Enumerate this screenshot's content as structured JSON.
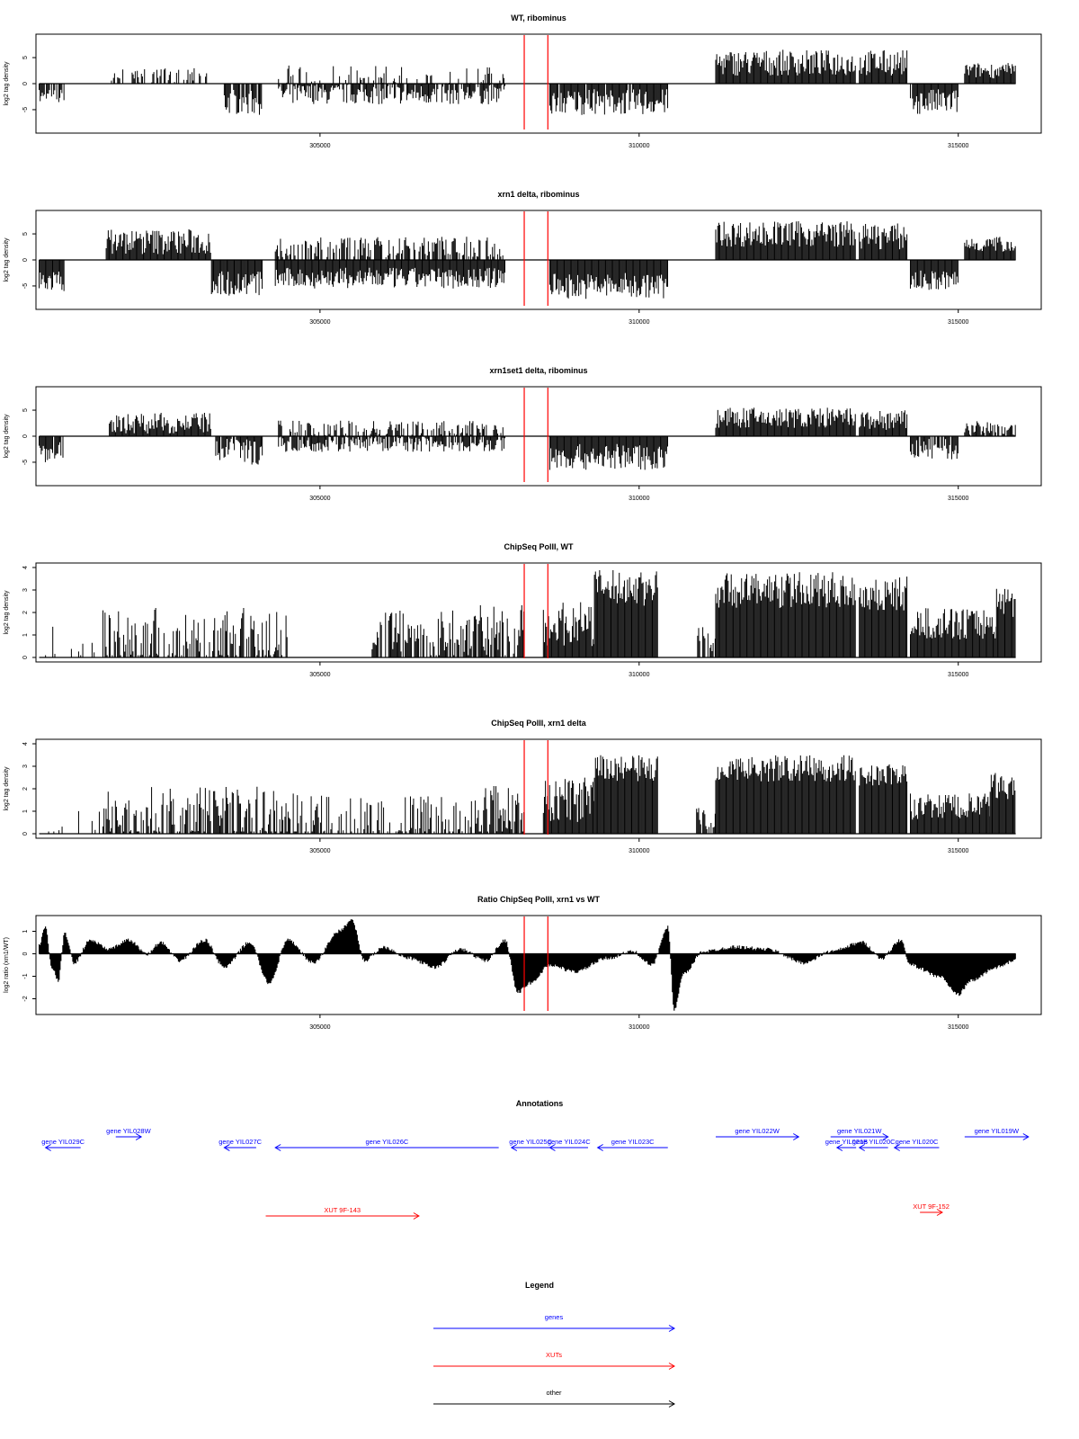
{
  "axis": {
    "x_domain": [
      300550,
      316300
    ],
    "x_ticks": [
      305000,
      310000,
      315000
    ],
    "x_tick_labels": [
      "305000",
      "310000",
      "315000"
    ]
  },
  "highlight": {
    "color": "#ff0000",
    "positions": [
      308200,
      308570
    ]
  },
  "chart_data": [
    {
      "type": "bar",
      "title": "WT, ribominus",
      "ylabel": "log2 tag density",
      "ylim": [
        -9.5,
        9.5
      ],
      "y_ticks": [
        -5,
        0,
        5
      ],
      "y_tick_labels": [
        "-5",
        "0",
        "5"
      ],
      "x_range": [
        300600,
        315900
      ],
      "segments": [
        {
          "x": [
            300600,
            301000
          ],
          "value": -2.5,
          "amp": 1.5,
          "density": 0.8
        },
        {
          "x": [
            301700,
            303300
          ],
          "value": 1.5,
          "amp": 1.5,
          "density": 0.45
        },
        {
          "x": [
            303500,
            304100
          ],
          "value": -3.5,
          "amp": 2.5,
          "density": 0.9
        },
        {
          "x": [
            304350,
            307900
          ],
          "value": -2.0,
          "amp": 2.0,
          "density": 0.85
        },
        {
          "x": [
            304350,
            307900
          ],
          "value": 1.5,
          "amp": 2.0,
          "density": 0.35
        },
        {
          "x": [
            308600,
            310450
          ],
          "value": -3.5,
          "amp": 2.5,
          "density": 0.95
        },
        {
          "x": [
            311200,
            313400
          ],
          "value": 4.0,
          "amp": 2.5,
          "density": 1.0
        },
        {
          "x": [
            313450,
            314200
          ],
          "value": 4.0,
          "amp": 2.5,
          "density": 1.0
        },
        {
          "x": [
            314250,
            315000
          ],
          "value": -3.5,
          "amp": 2.5,
          "density": 0.95
        },
        {
          "x": [
            315100,
            315900
          ],
          "value": 2.5,
          "amp": 1.5,
          "density": 1.0
        }
      ]
    },
    {
      "type": "bar",
      "title": "xrn1 delta, ribominus",
      "ylabel": "log2 tag density",
      "ylim": [
        -9.5,
        9.5
      ],
      "y_ticks": [
        -5,
        0,
        5
      ],
      "y_tick_labels": [
        "-5",
        "0",
        "5"
      ],
      "x_range": [
        300600,
        315900
      ],
      "segments": [
        {
          "x": [
            300600,
            301000
          ],
          "value": -4.0,
          "amp": 2.0,
          "density": 1.0
        },
        {
          "x": [
            301650,
            303300
          ],
          "value": 3.5,
          "amp": 2.5,
          "density": 1.0
        },
        {
          "x": [
            303300,
            304100
          ],
          "value": -4.5,
          "amp": 2.5,
          "density": 1.0
        },
        {
          "x": [
            304300,
            307900
          ],
          "value": -3.5,
          "amp": 2.0,
          "density": 1.0
        },
        {
          "x": [
            304300,
            307900
          ],
          "value": 2.5,
          "amp": 2.0,
          "density": 0.6
        },
        {
          "x": [
            308600,
            310450
          ],
          "value": -5.0,
          "amp": 2.5,
          "density": 1.0
        },
        {
          "x": [
            311200,
            313400
          ],
          "value": 5.0,
          "amp": 2.5,
          "density": 1.0
        },
        {
          "x": [
            313450,
            314200
          ],
          "value": 4.5,
          "amp": 2.5,
          "density": 1.0
        },
        {
          "x": [
            314250,
            315000
          ],
          "value": -4.0,
          "amp": 2.0,
          "density": 1.0
        },
        {
          "x": [
            315100,
            315900
          ],
          "value": 3.0,
          "amp": 1.5,
          "density": 1.0
        }
      ]
    },
    {
      "type": "bar",
      "title": "xrn1set1 delta, ribominus",
      "ylabel": "log2 tag density",
      "ylim": [
        -9.5,
        9.5
      ],
      "y_ticks": [
        -5,
        0,
        5
      ],
      "y_tick_labels": [
        "-5",
        "0",
        "5"
      ],
      "x_range": [
        300600,
        315900
      ],
      "segments": [
        {
          "x": [
            300600,
            301000
          ],
          "value": -3.0,
          "amp": 2.0,
          "density": 0.9
        },
        {
          "x": [
            301700,
            303300
          ],
          "value": 2.5,
          "amp": 2.0,
          "density": 1.0
        },
        {
          "x": [
            303350,
            304100
          ],
          "value": -3.0,
          "amp": 2.5,
          "density": 0.9
        },
        {
          "x": [
            304350,
            307900
          ],
          "value": -1.5,
          "amp": 1.5,
          "density": 0.85
        },
        {
          "x": [
            304350,
            307900
          ],
          "value": 1.5,
          "amp": 1.5,
          "density": 0.6
        },
        {
          "x": [
            308600,
            310450
          ],
          "value": -4.0,
          "amp": 2.5,
          "density": 1.0
        },
        {
          "x": [
            311200,
            313400
          ],
          "value": 3.5,
          "amp": 2.0,
          "density": 1.0
        },
        {
          "x": [
            313450,
            314200
          ],
          "value": 3.0,
          "amp": 2.0,
          "density": 1.0
        },
        {
          "x": [
            314250,
            315000
          ],
          "value": -2.5,
          "amp": 2.0,
          "density": 0.9
        },
        {
          "x": [
            315100,
            315900
          ],
          "value": 1.5,
          "amp": 1.5,
          "density": 0.9
        }
      ]
    },
    {
      "type": "bar",
      "title": "ChipSeq PolII, WT",
      "ylabel": "log2 tag density",
      "ylim": [
        -0.2,
        4.2
      ],
      "y_ticks": [
        0,
        1,
        2,
        3,
        4
      ],
      "y_tick_labels": [
        "0",
        "1",
        "2",
        "3",
        "4"
      ],
      "x_range": [
        300600,
        315900
      ],
      "segments": [
        {
          "x": [
            300700,
            301600
          ],
          "value": 0.4,
          "amp": 1.3,
          "density": 0.12
        },
        {
          "x": [
            301600,
            304500
          ],
          "value": 1.0,
          "amp": 1.2,
          "density": 0.7
        },
        {
          "x": [
            305800,
            307400
          ],
          "value": 1.0,
          "amp": 1.1,
          "density": 0.7
        },
        {
          "x": [
            307400,
            308200
          ],
          "value": 1.1,
          "amp": 1.3,
          "density": 0.8
        },
        {
          "x": [
            308500,
            309300
          ],
          "value": 1.5,
          "amp": 1.0,
          "density": 1.0
        },
        {
          "x": [
            309300,
            310300
          ],
          "value": 3.1,
          "amp": 0.8,
          "density": 1.0
        },
        {
          "x": [
            310900,
            311200
          ],
          "value": 0.8,
          "amp": 0.6,
          "density": 0.7
        },
        {
          "x": [
            311200,
            313400
          ],
          "value": 3.0,
          "amp": 0.8,
          "density": 1.0
        },
        {
          "x": [
            313450,
            314200
          ],
          "value": 2.8,
          "amp": 0.8,
          "density": 1.0
        },
        {
          "x": [
            314250,
            315600
          ],
          "value": 1.5,
          "amp": 0.7,
          "density": 1.0
        },
        {
          "x": [
            315600,
            315900
          ],
          "value": 2.5,
          "amp": 0.7,
          "density": 1.0
        }
      ]
    },
    {
      "type": "bar",
      "title": "ChipSeq PolII, xrn1 delta",
      "ylabel": "log2 tag density",
      "ylim": [
        -0.2,
        4.2
      ],
      "y_ticks": [
        0,
        1,
        2,
        3,
        4
      ],
      "y_tick_labels": [
        "0",
        "1",
        "2",
        "3",
        "4"
      ],
      "x_range": [
        300600,
        315900
      ],
      "segments": [
        {
          "x": [
            300700,
            301600
          ],
          "value": 0.3,
          "amp": 1.0,
          "density": 0.1
        },
        {
          "x": [
            301600,
            304700
          ],
          "value": 0.8,
          "amp": 1.3,
          "density": 0.7
        },
        {
          "x": [
            304700,
            307400
          ],
          "value": 0.5,
          "amp": 1.2,
          "density": 0.6
        },
        {
          "x": [
            307400,
            308200
          ],
          "value": 1.0,
          "amp": 1.2,
          "density": 0.8
        },
        {
          "x": [
            308500,
            309300
          ],
          "value": 1.5,
          "amp": 1.0,
          "density": 1.0
        },
        {
          "x": [
            309300,
            310300
          ],
          "value": 2.9,
          "amp": 0.6,
          "density": 1.0
        },
        {
          "x": [
            310900,
            311200
          ],
          "value": 0.7,
          "amp": 0.5,
          "density": 0.7
        },
        {
          "x": [
            311200,
            313400
          ],
          "value": 2.9,
          "amp": 0.6,
          "density": 1.0
        },
        {
          "x": [
            313450,
            314200
          ],
          "value": 2.6,
          "amp": 0.5,
          "density": 1.0
        },
        {
          "x": [
            314250,
            315500
          ],
          "value": 1.2,
          "amp": 0.6,
          "density": 1.0
        },
        {
          "x": [
            315500,
            315900
          ],
          "value": 2.1,
          "amp": 0.6,
          "density": 1.0
        }
      ]
    },
    {
      "type": "area",
      "title": "Ratio ChipSeq PolII, xrn1 vs WT",
      "ylabel": "log2 ratio (xrn1/WT)",
      "ylim": [
        -2.7,
        1.7
      ],
      "y_ticks": [
        -2,
        -1,
        0,
        1
      ],
      "y_tick_labels": [
        "-2",
        "-1",
        "0",
        "1"
      ],
      "x_range": [
        300600,
        315900
      ],
      "anchors": [
        [
          300600,
          0.4
        ],
        [
          300700,
          1.2
        ],
        [
          300800,
          -0.6
        ],
        [
          300900,
          -1.2
        ],
        [
          301000,
          0.9
        ],
        [
          301150,
          -0.4
        ],
        [
          301400,
          0.6
        ],
        [
          301700,
          0.2
        ],
        [
          302000,
          0.6
        ],
        [
          302300,
          0.0
        ],
        [
          302500,
          0.5
        ],
        [
          302800,
          -0.3
        ],
        [
          303200,
          0.6
        ],
        [
          303500,
          -0.6
        ],
        [
          303900,
          0.5
        ],
        [
          304200,
          -1.3
        ],
        [
          304500,
          0.6
        ],
        [
          304900,
          -0.4
        ],
        [
          305300,
          1.0
        ],
        [
          305500,
          1.5
        ],
        [
          305700,
          -0.3
        ],
        [
          306000,
          0.3
        ],
        [
          306400,
          -0.2
        ],
        [
          306800,
          -0.6
        ],
        [
          307200,
          0.2
        ],
        [
          307600,
          -0.3
        ],
        [
          307900,
          0.6
        ],
        [
          308100,
          -1.7
        ],
        [
          308300,
          -1.3
        ],
        [
          308600,
          -0.5
        ],
        [
          309000,
          -0.8
        ],
        [
          309500,
          -0.2
        ],
        [
          309900,
          0.1
        ],
        [
          310200,
          -0.5
        ],
        [
          310450,
          1.2
        ],
        [
          310550,
          -2.5
        ],
        [
          310700,
          -0.9
        ],
        [
          311000,
          0.1
        ],
        [
          311500,
          0.3
        ],
        [
          312000,
          0.2
        ],
        [
          312600,
          -0.4
        ],
        [
          313000,
          0.1
        ],
        [
          313500,
          0.5
        ],
        [
          313800,
          -0.2
        ],
        [
          314100,
          0.6
        ],
        [
          314250,
          -0.5
        ],
        [
          314700,
          -1.0
        ],
        [
          315000,
          -1.8
        ],
        [
          315200,
          -1.2
        ],
        [
          315600,
          -0.6
        ],
        [
          315900,
          -0.3
        ]
      ]
    }
  ],
  "annotations": {
    "title": "Annotations",
    "genes": [
      {
        "label": "gene YIL029C",
        "x": [
          300700,
          301250
        ],
        "dir": "left",
        "row": 2
      },
      {
        "label": "gene YIL028W",
        "x": [
          301800,
          302200
        ],
        "dir": "right",
        "row": 1
      },
      {
        "label": "gene YIL027C",
        "x": [
          303500,
          304000
        ],
        "dir": "left",
        "row": 2
      },
      {
        "label": "gene YIL026C",
        "x": [
          304300,
          307800
        ],
        "dir": "left",
        "row": 2
      },
      {
        "label": "gene YIL025C",
        "x": [
          308000,
          308600
        ],
        "dir": "left",
        "row": 2
      },
      {
        "label": "gene YIL024C",
        "x": [
          308600,
          309200
        ],
        "dir": "left",
        "row": 2
      },
      {
        "label": "gene YIL023C",
        "x": [
          309350,
          310450
        ],
        "dir": "left",
        "row": 2
      },
      {
        "label": "gene YIL022W",
        "x": [
          311200,
          312500
        ],
        "dir": "right",
        "row": 1
      },
      {
        "label": "gene YIL021W",
        "x": [
          313000,
          313900
        ],
        "dir": "right",
        "row": 1
      },
      {
        "label": "gene YIL021B",
        "x": [
          313100,
          313400
        ],
        "dir": "left",
        "row": 2
      },
      {
        "label": "gene YIL020C",
        "x": [
          313450,
          313900
        ],
        "dir": "left",
        "row": 2
      },
      {
        "label": "gene YIL020C",
        "x": [
          314000,
          314700
        ],
        "dir": "left",
        "row": 2
      },
      {
        "label": "gene YIL019W",
        "x": [
          315100,
          316100
        ],
        "dir": "right",
        "row": 1
      }
    ],
    "xuts": [
      {
        "label": "XUT 9F-143",
        "x": [
          304150,
          306550
        ],
        "dir": "right",
        "row": 1
      },
      {
        "label": "XUT 9F-152",
        "x": [
          314400,
          314750
        ],
        "dir": "right",
        "row": 0
      }
    ]
  },
  "legend": {
    "title": "Legend",
    "items": [
      {
        "label": "genes",
        "color": "#0000ff"
      },
      {
        "label": "XUTs",
        "color": "#ff0000"
      },
      {
        "label": "other",
        "color": "#000000"
      }
    ]
  },
  "colors": {
    "gene": "#0000ff",
    "xut": "#ff0000",
    "other": "#000000",
    "axis": "#000000"
  }
}
